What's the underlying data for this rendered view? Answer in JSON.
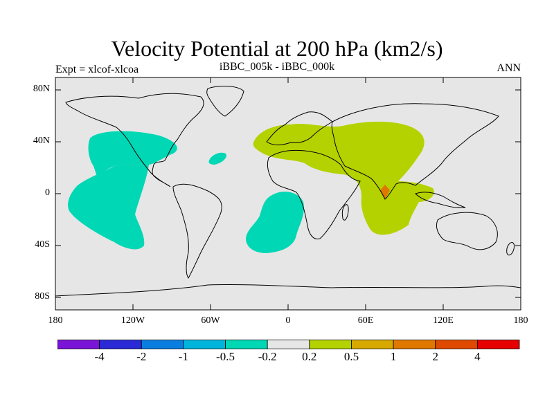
{
  "title": "Velocity Potential at 200 hPa (km2/s)",
  "experiment": "Expt = xlcof-xlcoa",
  "subtitle": "iBBC_005k - iBBC_000k",
  "season": "ANN",
  "colors": {
    "ocean_land_bg": "#e6e6e6",
    "negative_fill": "#00d7b4",
    "positive_fill": "#b4d200",
    "strong_positive_fill": "#e07800",
    "coast": "#000000"
  },
  "lat_labels": [
    "80N",
    "40N",
    "0",
    "40S",
    "80S"
  ],
  "lon_labels": [
    "180",
    "120W",
    "60W",
    "0",
    "60E",
    "120E",
    "180"
  ],
  "colorbar": {
    "colors": [
      "#7a14d6",
      "#2a2ad6",
      "#0a7ee0",
      "#00b4dc",
      "#00d7b4",
      "#e6e6e6",
      "#b4d200",
      "#d6a800",
      "#e07800",
      "#e04a00",
      "#e60000"
    ],
    "labels": [
      "-4",
      "-2",
      "-1",
      "-0.5",
      "-0.2",
      "0.2",
      "0.5",
      "1",
      "2",
      "4"
    ]
  }
}
